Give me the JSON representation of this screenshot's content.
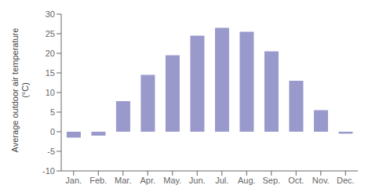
{
  "chart_data": {
    "type": "bar",
    "ylabel": "Average outdoor air temperature\n(°C)",
    "categories": [
      "Jan.",
      "Feb.",
      "Mar.",
      "Apr.",
      "May.",
      "Jun.",
      "Jul.",
      "Aug.",
      "Sep.",
      "Oct.",
      "Nov.",
      "Dec."
    ],
    "values": [
      -1.5,
      -1.0,
      7.8,
      14.5,
      19.5,
      24.5,
      26.5,
      25.5,
      20.5,
      13.0,
      5.5,
      -0.5
    ],
    "color": "#9999cc",
    "ylim": [
      -10,
      30
    ],
    "yticks": [
      -10,
      -5,
      0,
      5,
      10,
      15,
      20,
      25,
      30
    ],
    "grid": false
  }
}
